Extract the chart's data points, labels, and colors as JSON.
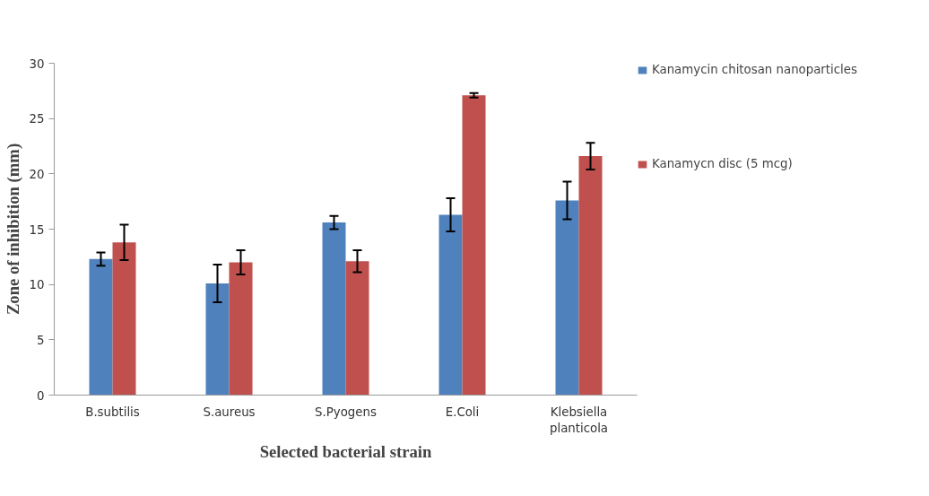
{
  "chart_data": {
    "type": "bar",
    "xlabel": "Selected bacterial strain",
    "ylabel": "Zone of inhibition (mm)",
    "categories": [
      "B.subtilis",
      "S.aureus",
      "S.Pyogens",
      "E.Coli",
      "Klebsiella planticola"
    ],
    "series": [
      {
        "name": "Kanamycin chitosan nanoparticles",
        "color": "#4f81bd",
        "values": [
          12.3,
          10.1,
          15.6,
          16.3,
          17.6
        ],
        "errors": [
          0.6,
          1.7,
          0.6,
          1.5,
          1.7
        ]
      },
      {
        "name": "Kanamycn disc (5 mcg)",
        "color": "#c0504d",
        "values": [
          13.8,
          12.0,
          12.1,
          27.1,
          21.6
        ],
        "errors": [
          1.6,
          1.1,
          1.0,
          0.2,
          1.2
        ]
      }
    ],
    "ylim": [
      0,
      30
    ],
    "yticks": [
      0,
      5,
      10,
      15,
      20,
      25,
      30
    ],
    "grid": false,
    "legend": "right"
  }
}
